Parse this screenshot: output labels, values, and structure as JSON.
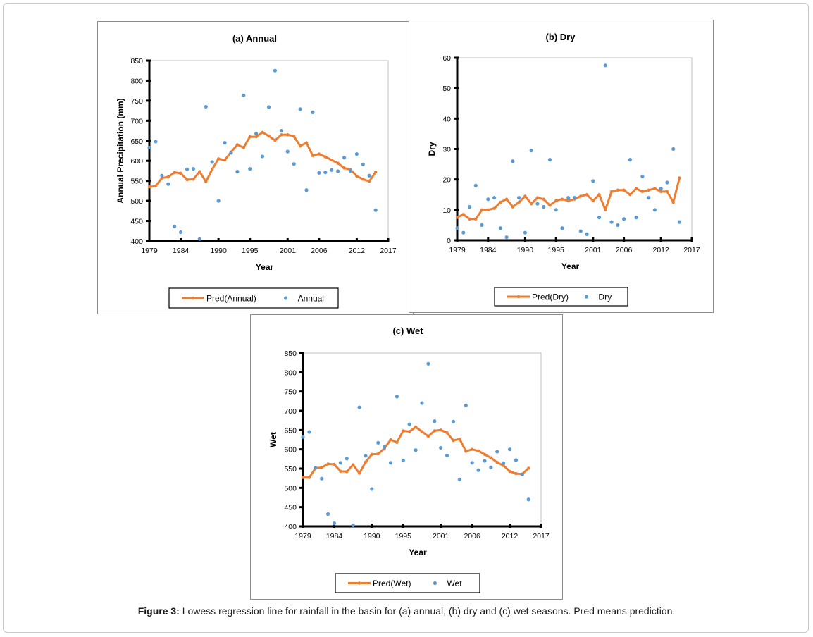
{
  "caption": {
    "label": "Figure 3:",
    "text": " Lowess regression line for rainfall in the basin for (a) annual, (b) dry and (c) wet seasons. Pred means prediction."
  },
  "colors": {
    "pred": "#ED7D31",
    "obs": "#5B9BD5",
    "axis": "#000000"
  },
  "chart_data": [
    {
      "type": "scatter",
      "id": "a",
      "title": "(a) Annual",
      "xlabel": "Year",
      "ylabel": "Annual Precipitation (mm)",
      "xlim": [
        1979,
        2017
      ],
      "ylim": [
        400,
        850
      ],
      "xticks": [
        1979,
        1984,
        1990,
        1995,
        2001,
        2006,
        2012,
        2017
      ],
      "yticks": [
        400,
        450,
        500,
        550,
        600,
        650,
        700,
        750,
        800,
        850
      ],
      "legend": {
        "position": "bottom",
        "pred": "Pred(Annual)",
        "obs": "Annual"
      },
      "series": [
        {
          "name": "Pred(Annual)",
          "kind": "line",
          "x": [
            1979,
            1980,
            1981,
            1982,
            1983,
            1984,
            1985,
            1986,
            1987,
            1988,
            1989,
            1990,
            1991,
            1992,
            1993,
            1994,
            1995,
            1996,
            1997,
            1998,
            1999,
            2000,
            2001,
            2002,
            2003,
            2004,
            2005,
            2006,
            2007,
            2008,
            2009,
            2010,
            2011,
            2012,
            2013,
            2014,
            2015
          ],
          "y": [
            535,
            537,
            557,
            560,
            571,
            569,
            553,
            554,
            573,
            548,
            579,
            605,
            602,
            622,
            640,
            633,
            660,
            660,
            671,
            662,
            651,
            665,
            665,
            661,
            637,
            645,
            613,
            617,
            610,
            602,
            594,
            582,
            578,
            562,
            554,
            549,
            572
          ]
        },
        {
          "name": "Annual",
          "kind": "scatter",
          "x": [
            1979,
            1980,
            1981,
            1982,
            1983,
            1984,
            1985,
            1986,
            1987,
            1988,
            1989,
            1990,
            1991,
            1992,
            1993,
            1994,
            1995,
            1996,
            1997,
            1998,
            1999,
            2000,
            2001,
            2002,
            2003,
            2004,
            2005,
            2006,
            2007,
            2008,
            2009,
            2010,
            2011,
            2012,
            2013,
            2014,
            2015
          ],
          "y": [
            633,
            648,
            563,
            542,
            436,
            422,
            579,
            580,
            405,
            735,
            597,
            500,
            645,
            620,
            573,
            763,
            580,
            668,
            611,
            734,
            825,
            675,
            623,
            592,
            729,
            527,
            721,
            570,
            571,
            577,
            574,
            608,
            575,
            617,
            591,
            563,
            477
          ]
        }
      ]
    },
    {
      "type": "scatter",
      "id": "b",
      "title": "(b) Dry",
      "xlabel": "Year",
      "ylabel": "Dry",
      "xlim": [
        1979,
        2017
      ],
      "ylim": [
        0,
        60
      ],
      "xticks": [
        1979,
        1984,
        1990,
        1995,
        2001,
        2006,
        2012,
        2017
      ],
      "yticks": [
        0,
        10,
        20,
        30,
        40,
        50,
        60
      ],
      "legend": {
        "position": "bottom",
        "pred": "Pred(Dry)",
        "obs": "Dry"
      },
      "series": [
        {
          "name": "Pred(Dry)",
          "kind": "line",
          "x": [
            1979,
            1980,
            1981,
            1982,
            1983,
            1984,
            1985,
            1986,
            1987,
            1988,
            1989,
            1990,
            1991,
            1992,
            1993,
            1994,
            1995,
            1996,
            1997,
            1998,
            1999,
            2000,
            2001,
            2002,
            2003,
            2004,
            2005,
            2006,
            2007,
            2008,
            2009,
            2010,
            2011,
            2012,
            2013,
            2014,
            2015
          ],
          "y": [
            7.5,
            8.5,
            7,
            7,
            10,
            10,
            10.5,
            12.5,
            13.5,
            11,
            12.5,
            14.5,
            12,
            14,
            13.5,
            11.5,
            13,
            13.5,
            13,
            13.5,
            14.5,
            15,
            13,
            15,
            10,
            16,
            16.5,
            16.5,
            15,
            17,
            16,
            16.5,
            17,
            16,
            16,
            12.5,
            20.5
          ]
        },
        {
          "name": "Dry",
          "kind": "scatter",
          "x": [
            1979,
            1980,
            1981,
            1982,
            1983,
            1984,
            1985,
            1986,
            1987,
            1988,
            1989,
            1990,
            1991,
            1992,
            1993,
            1994,
            1995,
            1996,
            1997,
            1998,
            1999,
            2000,
            2001,
            2002,
            2003,
            2004,
            2005,
            2006,
            2007,
            2008,
            2009,
            2010,
            2011,
            2012,
            2013,
            2014,
            2015
          ],
          "y": [
            4,
            2.5,
            11,
            18,
            5,
            13.5,
            14,
            4,
            1,
            26,
            14,
            2.5,
            29.5,
            12,
            11,
            26.5,
            10,
            4,
            14,
            14,
            3,
            2,
            19.5,
            7.5,
            57.5,
            6,
            5,
            7,
            26.5,
            7.5,
            21,
            14,
            10,
            17,
            19,
            30,
            6
          ]
        }
      ]
    },
    {
      "type": "scatter",
      "id": "c",
      "title": "(c) Wet",
      "xlabel": "Year",
      "ylabel": "Wet",
      "xlim": [
        1979,
        2017
      ],
      "ylim": [
        400,
        850
      ],
      "xticks": [
        1979,
        1984,
        1990,
        1995,
        2001,
        2006,
        2012,
        2017
      ],
      "yticks": [
        400,
        450,
        500,
        550,
        600,
        650,
        700,
        750,
        800,
        850
      ],
      "legend": {
        "position": "bottom",
        "pred": "Pred(Wet)",
        "obs": "Wet"
      },
      "series": [
        {
          "name": "Pred(Wet)",
          "kind": "line",
          "x": [
            1979,
            1980,
            1981,
            1982,
            1983,
            1984,
            1985,
            1986,
            1987,
            1988,
            1989,
            1990,
            1991,
            1992,
            1993,
            1994,
            1995,
            1996,
            1997,
            1998,
            1999,
            2000,
            2001,
            2002,
            2003,
            2004,
            2005,
            2006,
            2007,
            2008,
            2009,
            2010,
            2011,
            2012,
            2013,
            2014,
            2015
          ],
          "y": [
            527,
            527,
            551,
            553,
            562,
            561,
            543,
            542,
            560,
            538,
            567,
            587,
            588,
            602,
            625,
            618,
            648,
            646,
            658,
            646,
            634,
            648,
            650,
            643,
            623,
            627,
            595,
            600,
            596,
            587,
            578,
            566,
            558,
            543,
            537,
            536,
            551
          ]
        },
        {
          "name": "Wet",
          "kind": "scatter",
          "x": [
            1979,
            1980,
            1981,
            1982,
            1983,
            1984,
            1985,
            1986,
            1987,
            1988,
            1989,
            1990,
            1991,
            1992,
            1993,
            1994,
            1995,
            1996,
            1997,
            1998,
            1999,
            2000,
            2001,
            2002,
            2003,
            2004,
            2005,
            2006,
            2007,
            2008,
            2009,
            2010,
            2011,
            2012,
            2013,
            2014,
            2015
          ],
          "y": [
            632,
            645,
            552,
            524,
            432,
            408,
            565,
            576,
            403,
            709,
            583,
            497,
            617,
            606,
            565,
            737,
            571,
            665,
            598,
            720,
            822,
            673,
            604,
            584,
            672,
            522,
            714,
            565,
            546,
            570,
            553,
            594,
            564,
            600,
            572,
            535,
            470
          ]
        }
      ]
    }
  ]
}
